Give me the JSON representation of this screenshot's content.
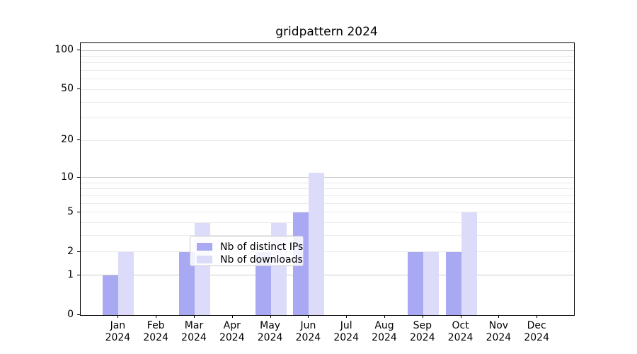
{
  "chart_data": {
    "type": "bar",
    "title": "gridpattern 2024",
    "categories": [
      "Jan",
      "Feb",
      "Mar",
      "Apr",
      "May",
      "Jun",
      "Jul",
      "Aug",
      "Sep",
      "Oct",
      "Nov",
      "Dec"
    ],
    "year_label": "2024",
    "series": [
      {
        "name": "Nb of distinct IPs",
        "color": "#a9a9f3",
        "values": [
          1,
          0,
          2,
          0,
          2,
          5,
          0,
          0,
          2,
          2,
          0,
          0
        ]
      },
      {
        "name": "Nb of downloads",
        "color": "#dcdcfa",
        "values": [
          2,
          0,
          4,
          0,
          4,
          11,
          0,
          0,
          2,
          5,
          0,
          0
        ]
      }
    ],
    "yscale": "log1p",
    "ylim": [
      0,
      113
    ],
    "ytick_labels": [
      "0",
      "1",
      "2",
      "5",
      "10",
      "20",
      "50",
      "100"
    ],
    "yticks": [
      0,
      1,
      2,
      5,
      10,
      20,
      50,
      100
    ],
    "major_gridlines": [
      1,
      10,
      100
    ],
    "minor_gridlines": [
      2,
      3,
      4,
      5,
      6,
      7,
      8,
      9,
      20,
      30,
      40,
      50,
      60,
      70,
      80,
      90
    ],
    "grid": true,
    "legend_position": "lower center",
    "xlabel": "",
    "ylabel": ""
  },
  "colors": {
    "major_grid": "#c9c9c9",
    "minor_grid": "#eaeaea",
    "spine": "#000000",
    "text": "#000000",
    "legend_border": "#c9c9c9",
    "legend_background": "rgba(255,255,255,0.85)"
  }
}
